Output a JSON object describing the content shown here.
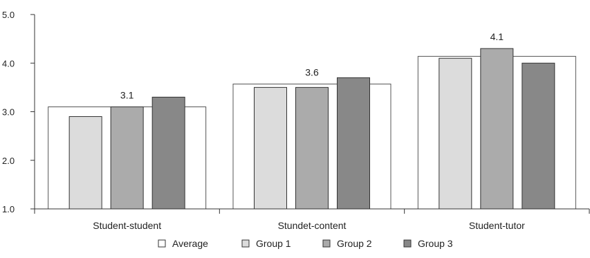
{
  "chart_data": {
    "type": "bar",
    "title": "",
    "xlabel": "",
    "ylabel": "",
    "ylim": [
      1.0,
      5.0
    ],
    "yticks": [
      "1.0",
      "2.0",
      "3.0",
      "4.0",
      "5.0"
    ],
    "categories": [
      "Student-student",
      "Stundet-content",
      "Student-tutor"
    ],
    "series": [
      {
        "name": "Average",
        "values": [
          3.1,
          3.57,
          4.14
        ],
        "color": "#ffffff",
        "style": "background"
      },
      {
        "name": "Group 1",
        "values": [
          2.9,
          3.5,
          4.1
        ],
        "color": "#dcdcdc"
      },
      {
        "name": "Group 2",
        "values": [
          3.1,
          3.5,
          4.3
        ],
        "color": "#ababab"
      },
      {
        "name": "Group 3",
        "values": [
          3.3,
          3.7,
          4.0
        ],
        "color": "#888888"
      }
    ],
    "data_labels": [
      "3.1",
      "3.6",
      "4.1"
    ],
    "grid": false,
    "legend_position": "bottom"
  }
}
